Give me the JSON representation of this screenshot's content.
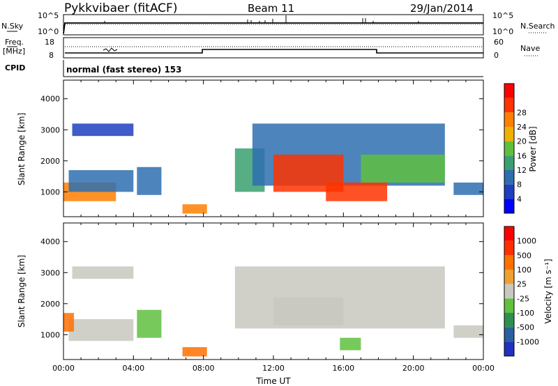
{
  "header": {
    "station": "Pykkvibaer (fitACF)",
    "beam": "Beam 11",
    "date": "29/Jan/2014"
  },
  "sky_panel": {
    "left_label": "N.Sky",
    "right_label": "N.Search",
    "left_ticks": [
      "10^5",
      "10^0"
    ],
    "right_ticks": [
      "10^5",
      "10^0"
    ]
  },
  "freq_panel": {
    "left_label_top": "Freq.",
    "left_label_unit": "[MHz]",
    "right_label": "Nave",
    "left_ticks": [
      "18",
      "8"
    ],
    "right_ticks": [
      "60",
      "0"
    ]
  },
  "cpid": {
    "label": "CPID",
    "text": "normal (fast stereo) 153"
  },
  "colors": {
    "power_scale": [
      "#0000ff",
      "#1f3fbf",
      "#2e6eaf",
      "#3aa070",
      "#5fbf3f",
      "#f0b000",
      "#ff7f00",
      "#ff3300",
      "#ff0000"
    ],
    "velocity_scale": [
      "#2030c0",
      "#2a60a0",
      "#2f8f4f",
      "#60c040",
      "#c8c8c0",
      "#f0a030",
      "#ff7000",
      "#ff3000",
      "#ff0000"
    ]
  },
  "chart_data": [
    {
      "type": "heatmap",
      "panel": "power",
      "ylabel": "Slant Range [km]",
      "xlabel": "",
      "yticks": [
        "1000",
        "2000",
        "3000",
        "4000"
      ],
      "ylim": [
        200,
        4600
      ],
      "xlim": [
        0,
        24
      ],
      "colorbar_label": "Power [dB]",
      "colorbar_ticks": [
        "4",
        "8",
        "12",
        "16",
        "20",
        "24",
        "28"
      ],
      "regions": [
        {
          "t0": 0.0,
          "t1": 3.0,
          "r0": 700,
          "r1": 1300,
          "level": 6
        },
        {
          "t0": 0.3,
          "t1": 4.0,
          "r0": 1000,
          "r1": 1700,
          "level": 2
        },
        {
          "t0": 0.5,
          "t1": 4.0,
          "r0": 2800,
          "r1": 3200,
          "level": 1
        },
        {
          "t0": 4.2,
          "t1": 5.6,
          "r0": 900,
          "r1": 1800,
          "level": 2
        },
        {
          "t0": 6.8,
          "t1": 8.2,
          "r0": 300,
          "r1": 600,
          "level": 6
        },
        {
          "t0": 9.8,
          "t1": 11.5,
          "r0": 1000,
          "r1": 2400,
          "level": 3
        },
        {
          "t0": 10.8,
          "t1": 21.8,
          "r0": 1200,
          "r1": 3200,
          "level": 2
        },
        {
          "t0": 12.0,
          "t1": 16.0,
          "r0": 1000,
          "r1": 2200,
          "level": 7
        },
        {
          "t0": 15.0,
          "t1": 18.5,
          "r0": 700,
          "r1": 1300,
          "level": 7
        },
        {
          "t0": 17.0,
          "t1": 21.8,
          "r0": 1300,
          "r1": 2200,
          "level": 4
        },
        {
          "t0": 22.3,
          "t1": 24.0,
          "r0": 900,
          "r1": 1300,
          "level": 2
        }
      ]
    },
    {
      "type": "heatmap",
      "panel": "velocity",
      "ylabel": "Slant Range [km]",
      "xlabel": "Time UT",
      "yticks": [
        "1000",
        "2000",
        "3000",
        "4000"
      ],
      "xticks": [
        "00:00",
        "04:00",
        "08:00",
        "12:00",
        "16:00",
        "20:00",
        "00:00"
      ],
      "ylim": [
        200,
        4600
      ],
      "xlim": [
        0,
        24
      ],
      "colorbar_label": "Velocity [m s⁻¹]",
      "colorbar_ticks": [
        "1000",
        "500",
        "100",
        "25",
        "-25",
        "-100",
        "-500",
        "-1000"
      ],
      "regions": [
        {
          "t0": 0.3,
          "t1": 4.0,
          "r0": 800,
          "r1": 1500,
          "level": 4
        },
        {
          "t0": 0.0,
          "t1": 0.6,
          "r0": 1100,
          "r1": 1700,
          "level": 6
        },
        {
          "t0": 0.5,
          "t1": 4.0,
          "r0": 2800,
          "r1": 3200,
          "level": 4
        },
        {
          "t0": 4.2,
          "t1": 5.6,
          "r0": 900,
          "r1": 1800,
          "level": 3
        },
        {
          "t0": 6.8,
          "t1": 8.2,
          "r0": 300,
          "r1": 600,
          "level": 6
        },
        {
          "t0": 9.8,
          "t1": 21.8,
          "r0": 1200,
          "r1": 3200,
          "level": 4
        },
        {
          "t0": 12.0,
          "t1": 16.0,
          "r0": 1300,
          "r1": 2200,
          "level": 4
        },
        {
          "t0": 15.8,
          "t1": 17.0,
          "r0": 500,
          "r1": 900,
          "level": 3
        },
        {
          "t0": 22.3,
          "t1": 24.0,
          "r0": 900,
          "r1": 1300,
          "level": 4
        }
      ]
    }
  ]
}
